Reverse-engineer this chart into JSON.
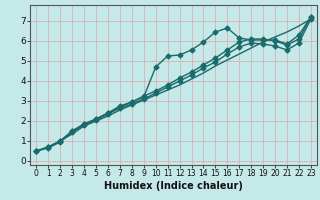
{
  "title": "",
  "xlabel": "Humidex (Indice chaleur)",
  "xlim": [
    -0.5,
    23.5
  ],
  "ylim": [
    -0.2,
    7.8
  ],
  "xticks": [
    0,
    1,
    2,
    3,
    4,
    5,
    6,
    7,
    8,
    9,
    10,
    11,
    12,
    13,
    14,
    15,
    16,
    17,
    18,
    19,
    20,
    21,
    22,
    23
  ],
  "yticks": [
    0,
    1,
    2,
    3,
    4,
    5,
    6,
    7
  ],
  "background_color": "#c5e8e8",
  "grid_color": "#d4b8b8",
  "line_color": "#1a6b6b",
  "series": [
    [
      0.5,
      0.7,
      1.0,
      1.35,
      1.75,
      2.0,
      2.25,
      2.55,
      2.8,
      3.05,
      3.3,
      3.55,
      3.8,
      4.1,
      4.4,
      4.75,
      5.05,
      5.35,
      5.65,
      5.95,
      6.2,
      6.45,
      6.75,
      7.1
    ],
    [
      0.5,
      0.7,
      1.0,
      1.5,
      1.85,
      2.1,
      2.4,
      2.7,
      2.95,
      3.2,
      4.7,
      5.25,
      5.3,
      5.55,
      5.95,
      6.45,
      6.65,
      6.15,
      6.05,
      6.05,
      6.05,
      5.85,
      6.3,
      7.2
    ],
    [
      0.5,
      0.7,
      1.0,
      1.5,
      1.85,
      2.1,
      2.4,
      2.75,
      2.95,
      3.25,
      3.5,
      3.8,
      4.15,
      4.45,
      4.8,
      5.15,
      5.55,
      5.95,
      6.1,
      6.1,
      6.0,
      5.8,
      6.1,
      7.2
    ],
    [
      0.5,
      0.65,
      0.95,
      1.45,
      1.8,
      2.05,
      2.35,
      2.65,
      2.85,
      3.1,
      3.4,
      3.7,
      4.0,
      4.3,
      4.65,
      4.95,
      5.35,
      5.7,
      5.9,
      5.85,
      5.75,
      5.55,
      5.9,
      7.1
    ]
  ],
  "has_markers": [
    false,
    true,
    true,
    true
  ],
  "marker_style": "D",
  "marker_size": 2.5,
  "linewidths": [
    1.0,
    1.0,
    1.0,
    1.0
  ],
  "xtick_fontsize": 5.5,
  "ytick_fontsize": 6.5,
  "xlabel_fontsize": 7.0
}
